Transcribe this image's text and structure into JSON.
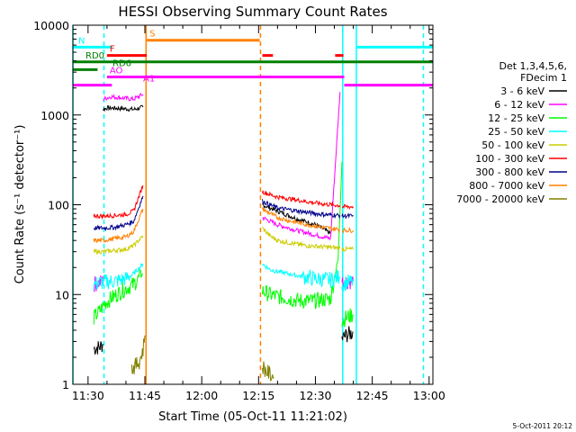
{
  "chart_data": {
    "type": "line",
    "title": "HESSI Observing Summary Count Rates",
    "xlabel": "Start Time (05-Oct-11 11:21:02)",
    "ylabel": "Count Rate (s⁻¹ detector⁻¹)",
    "ylim": [
      1,
      10000
    ],
    "yscale": "log",
    "xlim_minutes": [
      686,
      781
    ],
    "x_ticks": [
      {
        "m": 690,
        "label": "11:30"
      },
      {
        "m": 705,
        "label": "11:45"
      },
      {
        "m": 720,
        "label": "12:00"
      },
      {
        "m": 735,
        "label": "12:15"
      },
      {
        "m": 750,
        "label": "12:30"
      },
      {
        "m": 765,
        "label": "12:45"
      },
      {
        "m": 780,
        "label": "13:00"
      }
    ],
    "x_minor_step_minutes": 5,
    "y_ticks": [
      {
        "v": 1,
        "label": "1"
      },
      {
        "v": 10,
        "label": "10"
      },
      {
        "v": 100,
        "label": "100"
      },
      {
        "v": 1000,
        "label": "1000"
      },
      {
        "v": 10000,
        "label": "10000"
      }
    ],
    "legend_header": [
      "Det 1,3,4,5,6,",
      "FDecim 1"
    ],
    "legend_placement": "right",
    "series": [
      {
        "name": "3 - 6 keV",
        "color": "#000000",
        "segments": [
          {
            "x": [
              691.5,
              693.0,
              694.0
            ],
            "y": [
              2.5,
              2.6,
              2.8
            ]
          },
          {
            "x": [
              694.0,
              695.0,
              699.0,
              702.0,
              704.5
            ],
            "y": [
              1150,
              1200,
              1180,
              1150,
              1220
            ]
          },
          {
            "x": [
              736.0,
              740.0,
              745.0,
              750.0,
              754.0
            ],
            "y": [
              100,
              85,
              70,
              60,
              48
            ]
          },
          {
            "x": [
              757.0,
              758.0,
              760.0
            ],
            "y": [
              3.2,
              3.5,
              3.8
            ]
          }
        ]
      },
      {
        "name": "6 - 12 keV",
        "color": "#ff00ff",
        "segments": [
          {
            "x": [
              691.5,
              694.0
            ],
            "y": [
              13,
              14
            ]
          },
          {
            "x": [
              694.0,
              696.0,
              699.0,
              702.0,
              704.5
            ],
            "y": [
              1500,
              1600,
              1550,
              1500,
              1700
            ]
          },
          {
            "x": [
              736.0,
              740.0,
              745.0,
              750.0,
              754.0,
              756.5
            ],
            "y": [
              72,
              60,
              52,
              46,
              42,
              1800
            ]
          },
          {
            "x": [
              757.0,
              760.0
            ],
            "y": [
              14,
              14
            ]
          }
        ]
      },
      {
        "name": "12 - 25 keV",
        "color": "#00ff00",
        "segments": [
          {
            "x": [
              691.5,
              693.0,
              694.5,
              696.0,
              699.0,
              702.0,
              704.5
            ],
            "y": [
              5.5,
              6.5,
              8,
              9,
              11,
              13,
              17
            ]
          },
          {
            "x": [
              736.0,
              738.0,
              740.0,
              743.0,
              746.0,
              750.0,
              754.0,
              756.0,
              757.0
            ],
            "y": [
              11,
              10,
              9.5,
              9,
              8.5,
              8.5,
              9,
              25,
              300
            ]
          },
          {
            "x": [
              757.0,
              758.0,
              760.0
            ],
            "y": [
              5,
              5.5,
              6
            ]
          }
        ]
      },
      {
        "name": "25 - 50 keV",
        "color": "#00ffff",
        "segments": [
          {
            "x": [
              691.5,
              693.0,
              695.0,
              697.0,
              700.0,
              702.0,
              704.5
            ],
            "y": [
              13,
              13.5,
              14,
              14,
              15,
              17,
              22
            ]
          },
          {
            "x": [
              736.0,
              738.0,
              740.0,
              743.0,
              746.0,
              750.0,
              754.0,
              756.5
            ],
            "y": [
              22,
              19,
              18,
              17,
              16,
              15,
              14.5,
              16
            ]
          },
          {
            "x": [
              757.0,
              758.0,
              760.0
            ],
            "y": [
              13,
              13.5,
              14
            ]
          }
        ]
      },
      {
        "name": "50 - 100 keV",
        "color": "#cccc00",
        "segments": [
          {
            "x": [
              691.5,
              694.0,
              697.0,
              700.0,
              702.0,
              704.5
            ],
            "y": [
              30,
              30,
              31,
              32,
              35,
              45
            ]
          },
          {
            "x": [
              736.0,
              738.0,
              740.0,
              744.0,
              748.0,
              752.0,
              756.5
            ],
            "y": [
              55,
              45,
              40,
              37,
              35,
              34,
              33
            ]
          },
          {
            "x": [
              757.0,
              758.0,
              760.0
            ],
            "y": [
              32,
              32,
              32
            ]
          }
        ]
      },
      {
        "name": "100 - 300 keV",
        "color": "#ff0000",
        "segments": [
          {
            "x": [
              691.5,
              694.0,
              697.0,
              700.0,
              702.0,
              704.5
            ],
            "y": [
              75,
              75,
              76,
              78,
              85,
              165
            ]
          },
          {
            "x": [
              736.0,
              738.0,
              740.0,
              744.0,
              748.0,
              752.0,
              756.5
            ],
            "y": [
              140,
              130,
              122,
              115,
              108,
              102,
              98
            ]
          },
          {
            "x": [
              757.0,
              758.0,
              760.0
            ],
            "y": [
              95,
              95,
              95
            ]
          }
        ]
      },
      {
        "name": "300 - 800 keV",
        "color": "#00008b",
        "segments": [
          {
            "x": [
              691.5,
              694.0,
              697.0,
              700.0,
              702.0,
              704.5
            ],
            "y": [
              55,
              55,
              56,
              60,
              65,
              125
            ]
          },
          {
            "x": [
              736.0,
              738.0,
              740.0,
              744.0,
              748.0,
              752.0,
              756.5
            ],
            "y": [
              110,
              100,
              92,
              87,
              82,
              78,
              76
            ]
          },
          {
            "x": [
              757.0,
              758.0,
              760.0
            ],
            "y": [
              75,
              75,
              75
            ]
          }
        ]
      },
      {
        "name": "800 - 7000 keV",
        "color": "#ff8000",
        "segments": [
          {
            "x": [
              691.5,
              694.0,
              697.0,
              700.0,
              702.0,
              704.5
            ],
            "y": [
              40,
              40,
              42,
              44,
              50,
              90
            ]
          },
          {
            "x": [
              736.0,
              738.0,
              740.0,
              744.0,
              748.0,
              752.0,
              756.5
            ],
            "y": [
              90,
              80,
              72,
              65,
              60,
              56,
              53
            ]
          },
          {
            "x": [
              757.0,
              758.0,
              760.0
            ],
            "y": [
              52,
              52,
              52
            ]
          }
        ]
      },
      {
        "name": "7000 - 20000 keV",
        "color": "#808000",
        "segments": [
          {
            "x": [
              701.5,
              702.5,
              703.5,
              704.5,
              705.0
            ],
            "y": [
              1.5,
              1.6,
              1.8,
              2.4,
              3.5
            ]
          },
          {
            "x": [
              736.0,
              737.0,
              738.0,
              739.0
            ],
            "y": [
              1.6,
              1.4,
              1.3,
              1.2
            ]
          }
        ]
      }
    ],
    "state_bars": [
      {
        "label": "S",
        "color": "#ff8000",
        "y": 6800,
        "segments": [
          [
            705.5,
            735.3
          ]
        ]
      },
      {
        "label": "N",
        "color": "#00ffff",
        "y": 5700,
        "segments": [
          [
            686,
            696.3
          ],
          [
            761.0,
            781
          ]
        ]
      },
      {
        "label": "F",
        "color": "#ff0000",
        "y": 4600,
        "segments": [
          [
            695.0,
            705.5
          ],
          [
            736.0,
            738.8
          ],
          [
            755.2,
            757.4
          ]
        ]
      },
      {
        "label": "RD0",
        "color": "#008000",
        "y": 3900,
        "segments": [
          [
            686,
            781
          ]
        ]
      },
      {
        "label": "RD6",
        "color": "#008000",
        "y": 3200,
        "segments": [
          [
            686,
            692.5
          ]
        ]
      },
      {
        "label": "AO",
        "color": "#ff00ff",
        "y": 2650,
        "segments": [
          [
            695.0,
            757.6
          ]
        ]
      },
      {
        "label": "A1",
        "color": "#ff00ff",
        "y": 2150,
        "segments": [
          [
            686,
            696.3
          ],
          [
            757.6,
            781
          ]
        ]
      }
    ],
    "event_lines": [
      {
        "x": 686.0,
        "color": "#00ffff",
        "style": "solid"
      },
      {
        "x": 694.2,
        "color": "#00ffff",
        "style": "dashed"
      },
      {
        "x": 705.3,
        "color": "#ff8000",
        "style": "solid"
      },
      {
        "x": 735.5,
        "color": "#ff8000",
        "style": "dashed"
      },
      {
        "x": 757.2,
        "color": "#00ffff",
        "style": "solid"
      },
      {
        "x": 760.8,
        "color": "#00ffff",
        "style": "solid"
      },
      {
        "x": 778.5,
        "color": "#00ffff",
        "style": "dashed"
      }
    ],
    "footer_stamp": "5-Oct-2011 20:12"
  }
}
